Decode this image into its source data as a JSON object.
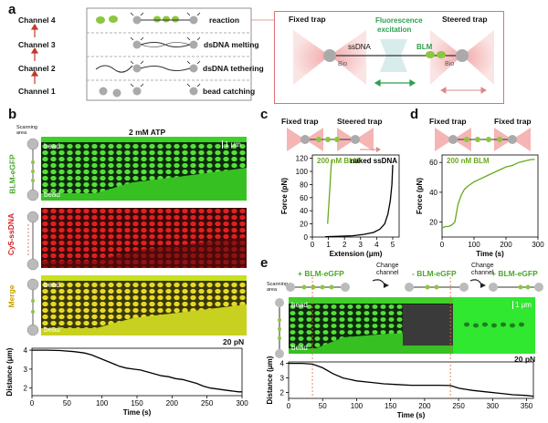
{
  "panel_a": {
    "label": "a",
    "channels": [
      "Channel 1",
      "Channel 2",
      "Channel 3",
      "Channel 4"
    ],
    "steps": [
      "bead catching",
      "dsDNA tethering",
      "dsDNA melting",
      "reaction"
    ],
    "diagram": {
      "fixed_trap": "Fixed trap",
      "steered_trap": "Steered trap",
      "ssdna": "ssDNA",
      "fluorescence_1": "Fluorescence",
      "fluorescence_2": "excitation",
      "blm": "BLM",
      "bio_left": "Bio",
      "bio_right": "Bio"
    }
  },
  "panel_b": {
    "label": "b",
    "title": "2 mM ATP",
    "scanning_area": "Scanning\narea",
    "channel_labels": [
      "BLM-eGFP",
      "Cy5-ssDNA",
      "Merge"
    ],
    "bead": "bead",
    "scale": "1 μm",
    "force": "20 pN"
  },
  "panel_c": {
    "label": "c",
    "fixed_trap": "Fixed trap",
    "steered_trap": "Steered trap"
  },
  "panel_d": {
    "label": "d",
    "fixed_trap_left": "Fixed trap",
    "fixed_trap_right": "Fixed trap"
  },
  "panel_e": {
    "label": "e",
    "scanning_area": "Scanning\narea",
    "step1": "+ BLM-eGFP",
    "change1": "Change\nchannel",
    "step2": "- BLM-eGFP",
    "change2": "Change\nchannel",
    "step3": "+ BLM-eGFP",
    "bead": "bead",
    "scale": "1 μm",
    "force": "20 pN"
  },
  "chart_data": [
    {
      "id": "b-distance",
      "type": "line",
      "xlabel": "Time (s)",
      "ylabel": "Distance (μm)",
      "xlim": [
        0,
        300
      ],
      "ylim": [
        1.6,
        4.1
      ],
      "xticks": [
        0,
        50,
        100,
        150,
        200,
        250,
        300
      ],
      "yticks": [
        2,
        3,
        4
      ],
      "x": [
        0,
        20,
        40,
        60,
        75,
        85,
        95,
        105,
        115,
        125,
        135,
        145,
        155,
        165,
        175,
        185,
        195,
        205,
        215,
        225,
        235,
        245,
        255,
        265,
        275,
        285,
        295,
        300
      ],
      "y": [
        4.0,
        4.0,
        3.98,
        3.92,
        3.85,
        3.75,
        3.6,
        3.45,
        3.3,
        3.15,
        3.05,
        3.0,
        2.95,
        2.85,
        2.75,
        2.65,
        2.6,
        2.5,
        2.45,
        2.35,
        2.25,
        2.1,
        2.0,
        1.95,
        1.9,
        1.85,
        1.8,
        1.8
      ]
    },
    {
      "id": "c-force-extension",
      "type": "line",
      "xlabel": "Extension (μm)",
      "ylabel": "Force (pN)",
      "xlim": [
        0,
        5.4
      ],
      "ylim": [
        0,
        125
      ],
      "xticks": [
        0,
        1,
        2,
        3,
        4,
        5
      ],
      "yticks": [
        0,
        20,
        40,
        60,
        80,
        100,
        120
      ],
      "series": [
        {
          "name": "200 nM BLM",
          "color": "#6aa81e",
          "x": [
            0.95,
            1.0,
            1.05,
            1.1,
            1.15,
            1.2
          ],
          "y": [
            20,
            40,
            60,
            80,
            100,
            118
          ]
        },
        {
          "name": "naked ssDNA",
          "color": "#000000",
          "x": [
            0.8,
            1.5,
            2.5,
            3.2,
            3.8,
            4.2,
            4.5,
            4.7,
            4.85,
            4.95,
            5.0
          ],
          "y": [
            0.5,
            1,
            2,
            4,
            7,
            12,
            20,
            35,
            55,
            80,
            110
          ]
        }
      ]
    },
    {
      "id": "d-force-time",
      "type": "line",
      "xlabel": "Time (s)",
      "ylabel": "Force (pN)",
      "xlim": [
        0,
        300
      ],
      "ylim": [
        10,
        65
      ],
      "xticks": [
        0,
        100,
        200,
        300
      ],
      "yticks": [
        20,
        40,
        60
      ],
      "series": [
        {
          "name": "200 nM BLM",
          "color": "#6aa81e",
          "x": [
            0,
            10,
            20,
            30,
            40,
            50,
            60,
            70,
            80,
            100,
            120,
            140,
            160,
            180,
            200,
            220,
            240,
            260,
            280,
            290
          ],
          "y": [
            16,
            17,
            17,
            18,
            20,
            32,
            38,
            42,
            44,
            47,
            49,
            51,
            53,
            55,
            57,
            58,
            60,
            61,
            62,
            62
          ]
        }
      ]
    },
    {
      "id": "e-distance",
      "type": "line",
      "xlabel": "Time (s)",
      "ylabel": "Distance (μm)",
      "xlim": [
        0,
        360
      ],
      "ylim": [
        1.6,
        4.1
      ],
      "xticks": [
        0,
        50,
        100,
        150,
        200,
        250,
        300,
        350
      ],
      "yticks": [
        2,
        3,
        4
      ],
      "x": [
        0,
        20,
        35,
        50,
        65,
        80,
        100,
        120,
        140,
        160,
        180,
        200,
        220,
        238,
        250,
        270,
        290,
        310,
        330,
        350,
        360
      ],
      "y": [
        4.0,
        4.0,
        3.95,
        3.7,
        3.3,
        3.0,
        2.8,
        2.7,
        2.6,
        2.55,
        2.5,
        2.5,
        2.5,
        2.48,
        2.3,
        2.15,
        2.05,
        1.95,
        1.85,
        1.8,
        1.75
      ]
    }
  ]
}
